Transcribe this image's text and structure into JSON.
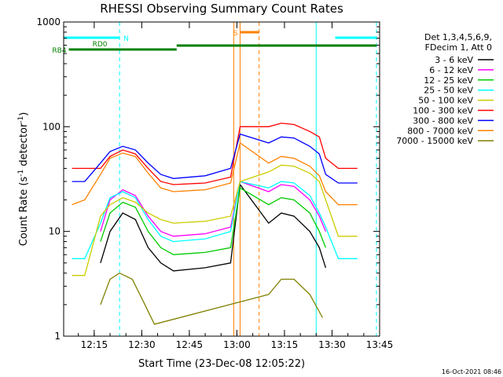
{
  "chart_data": {
    "type": "line",
    "title": "RHESSI Observing Summary Count Rates",
    "xlabel": "Start Time (23-Dec-08 12:05:22)",
    "ylabel": "Count Rate (s⁻¹ detector⁻¹)",
    "ylabel_main": "Count Rate (s",
    "ylabel_exp1": "-1",
    "ylabel_mid": " detector",
    "ylabel_exp2": "-1",
    "ylabel_end": ")",
    "y_scale": "log",
    "ylim": [
      1,
      1000
    ],
    "xlim": [
      "12:05:22",
      "13:45:00"
    ],
    "x_ticks": [
      "12:15",
      "12:30",
      "12:45",
      "13:00",
      "13:15",
      "13:30",
      "13:45"
    ],
    "y_ticks": [
      "1",
      "10",
      "100",
      "1000"
    ],
    "legend_placement": "top-right",
    "legend_header": [
      "Det 1,3,4,5,6,9,",
      "FDecim 1, Att 0"
    ],
    "timestamp": "16-Oct-2021 08:46",
    "series": [
      {
        "name": "3 - 6 keV",
        "color": "#000000",
        "points": [
          [
            "12:17:00",
            5
          ],
          [
            "12:20:00",
            10
          ],
          [
            "12:24:00",
            15
          ],
          [
            "12:28:00",
            13
          ],
          [
            "12:32:00",
            7
          ],
          [
            "12:36:00",
            5
          ],
          [
            "12:40:00",
            4.2
          ],
          [
            "12:50:00",
            4.5
          ],
          [
            "12:58:00",
            5
          ],
          [
            "13:01:00",
            28
          ],
          [
            "13:10:00",
            12
          ],
          [
            "13:14:00",
            15
          ],
          [
            "13:18:00",
            14
          ],
          [
            "13:23:00",
            10
          ],
          [
            "13:26:00",
            7
          ],
          [
            "13:28:00",
            4.5
          ]
        ]
      },
      {
        "name": "6 - 12 keV",
        "color": "#ff00ff",
        "points": [
          [
            "12:17:00",
            10
          ],
          [
            "12:20:00",
            20
          ],
          [
            "12:24:00",
            25
          ],
          [
            "12:28:00",
            22
          ],
          [
            "12:32:00",
            14
          ],
          [
            "12:36:00",
            10
          ],
          [
            "12:40:00",
            9
          ],
          [
            "12:50:00",
            9.5
          ],
          [
            "12:58:00",
            11
          ],
          [
            "13:01:00",
            30
          ],
          [
            "13:10:00",
            24
          ],
          [
            "13:14:00",
            28
          ],
          [
            "13:18:00",
            27
          ],
          [
            "13:23:00",
            20
          ],
          [
            "13:26:00",
            14
          ],
          [
            "13:28:00",
            10
          ]
        ]
      },
      {
        "name": "12 - 25 keV",
        "color": "#00cc00",
        "points": [
          [
            "12:17:00",
            8
          ],
          [
            "12:20:00",
            15
          ],
          [
            "12:24:00",
            19
          ],
          [
            "12:28:00",
            17
          ],
          [
            "12:32:00",
            10
          ],
          [
            "12:36:00",
            7
          ],
          [
            "12:40:00",
            6
          ],
          [
            "12:50:00",
            6.3
          ],
          [
            "12:58:00",
            7
          ],
          [
            "13:01:00",
            26
          ],
          [
            "13:10:00",
            18
          ],
          [
            "13:14:00",
            21
          ],
          [
            "13:18:00",
            20
          ],
          [
            "13:23:00",
            15
          ],
          [
            "13:26:00",
            10
          ],
          [
            "13:28:00",
            7
          ]
        ]
      },
      {
        "name": "25 - 50 keV",
        "color": "#00ffff",
        "points": [
          [
            "12:08:00",
            5.5
          ],
          [
            "12:10:00",
            5.5
          ],
          [
            "12:12:00",
            5.5
          ],
          [
            "12:17:00",
            12
          ],
          [
            "12:20:00",
            21
          ],
          [
            "12:24:00",
            24
          ],
          [
            "12:28:00",
            21
          ],
          [
            "12:32:00",
            13
          ],
          [
            "12:36:00",
            9
          ],
          [
            "12:40:00",
            8
          ],
          [
            "12:50:00",
            8.5
          ],
          [
            "12:58:00",
            10
          ],
          [
            "13:01:00",
            30
          ],
          [
            "13:10:00",
            26
          ],
          [
            "13:14:00",
            30
          ],
          [
            "13:18:00",
            29
          ],
          [
            "13:23:00",
            22
          ],
          [
            "13:26:00",
            15
          ],
          [
            "13:28:00",
            11
          ],
          [
            "13:32:00",
            5.5
          ],
          [
            "13:35:00",
            5.5
          ],
          [
            "13:38:00",
            5.5
          ]
        ]
      },
      {
        "name": "50 - 100 keV",
        "color": "#cccc00",
        "points": [
          [
            "12:08:00",
            3.8
          ],
          [
            "12:10:00",
            3.8
          ],
          [
            "12:12:00",
            3.8
          ],
          [
            "12:17:00",
            14
          ],
          [
            "12:20:00",
            18
          ],
          [
            "12:24:00",
            21
          ],
          [
            "12:28:00",
            19
          ],
          [
            "12:32:00",
            15
          ],
          [
            "12:36:00",
            13
          ],
          [
            "12:40:00",
            12
          ],
          [
            "12:50:00",
            12.5
          ],
          [
            "12:58:00",
            14
          ],
          [
            "13:01:00",
            30
          ],
          [
            "13:10:00",
            37
          ],
          [
            "13:14:00",
            43
          ],
          [
            "13:18:00",
            42
          ],
          [
            "13:23:00",
            36
          ],
          [
            "13:26:00",
            30
          ],
          [
            "13:28:00",
            20
          ],
          [
            "13:32:00",
            9
          ],
          [
            "13:35:00",
            9
          ],
          [
            "13:38:00",
            9
          ]
        ]
      },
      {
        "name": "100 - 300 keV",
        "color": "#ff0000",
        "points": [
          [
            "12:08:00",
            40
          ],
          [
            "12:10:00",
            40
          ],
          [
            "12:12:00",
            40
          ],
          [
            "12:17:00",
            40
          ],
          [
            "12:20:00",
            52
          ],
          [
            "12:24:00",
            60
          ],
          [
            "12:28:00",
            55
          ],
          [
            "12:32:00",
            40
          ],
          [
            "12:36:00",
            30
          ],
          [
            "12:40:00",
            28
          ],
          [
            "12:50:00",
            29
          ],
          [
            "12:58:00",
            33
          ],
          [
            "13:01:00",
            100
          ],
          [
            "13:10:00",
            100
          ],
          [
            "13:14:00",
            108
          ],
          [
            "13:18:00",
            105
          ],
          [
            "13:23:00",
            90
          ],
          [
            "13:26:00",
            80
          ],
          [
            "13:28:00",
            50
          ],
          [
            "13:32:00",
            40
          ],
          [
            "13:35:00",
            40
          ],
          [
            "13:38:00",
            40
          ]
        ]
      },
      {
        "name": "300 - 800 keV",
        "color": "#0000ff",
        "points": [
          [
            "12:08:00",
            30
          ],
          [
            "12:10:00",
            30
          ],
          [
            "12:12:00",
            30
          ],
          [
            "12:17:00",
            45
          ],
          [
            "12:20:00",
            58
          ],
          [
            "12:24:00",
            65
          ],
          [
            "12:28:00",
            60
          ],
          [
            "12:32:00",
            45
          ],
          [
            "12:36:00",
            35
          ],
          [
            "12:40:00",
            32
          ],
          [
            "12:50:00",
            34
          ],
          [
            "12:58:00",
            40
          ],
          [
            "13:01:00",
            85
          ],
          [
            "13:10:00",
            70
          ],
          [
            "13:14:00",
            80
          ],
          [
            "13:18:00",
            78
          ],
          [
            "13:23:00",
            65
          ],
          [
            "13:26:00",
            55
          ],
          [
            "13:28:00",
            35
          ],
          [
            "13:32:00",
            29
          ],
          [
            "13:35:00",
            29
          ],
          [
            "13:38:00",
            29
          ]
        ]
      },
      {
        "name": "800 - 7000 keV",
        "color": "#ff8000",
        "points": [
          [
            "12:08:00",
            18
          ],
          [
            "12:10:00",
            19
          ],
          [
            "12:12:00",
            20
          ],
          [
            "12:17:00",
            35
          ],
          [
            "12:20:00",
            50
          ],
          [
            "12:24:00",
            56
          ],
          [
            "12:28:00",
            52
          ],
          [
            "12:32:00",
            36
          ],
          [
            "12:36:00",
            26
          ],
          [
            "12:40:00",
            24
          ],
          [
            "12:50:00",
            25
          ],
          [
            "12:58:00",
            29
          ],
          [
            "13:01:00",
            70
          ],
          [
            "13:10:00",
            45
          ],
          [
            "13:14:00",
            52
          ],
          [
            "13:18:00",
            50
          ],
          [
            "13:23:00",
            42
          ],
          [
            "13:26:00",
            34
          ],
          [
            "13:28:00",
            24
          ],
          [
            "13:32:00",
            18
          ],
          [
            "13:35:00",
            18
          ],
          [
            "13:38:00",
            18
          ]
        ]
      },
      {
        "name": "7000 - 15000 keV",
        "color": "#808000",
        "points": [
          [
            "12:17:00",
            2
          ],
          [
            "12:20:00",
            3.5
          ],
          [
            "12:23:00",
            4
          ],
          [
            "12:27:00",
            3.5
          ],
          [
            "12:31:00",
            2
          ],
          [
            "12:34:00",
            1.3
          ],
          [
            "13:10:00",
            2.5
          ],
          [
            "13:14:00",
            3.5
          ],
          [
            "13:18:00",
            3.5
          ],
          [
            "13:23:00",
            2.5
          ],
          [
            "13:27:00",
            1.5
          ]
        ]
      }
    ],
    "annotations": {
      "states": [
        {
          "label": "N",
          "color": "#00ffff",
          "segments": [
            [
              "12:05:22",
              "12:23:00"
            ],
            [
              "13:31:00",
              "13:44:00"
            ]
          ]
        },
        {
          "label": "S",
          "color": "#ff8000",
          "segments": [
            [
              "13:01:00",
              "13:07:00"
            ]
          ]
        },
        {
          "label": "RD0",
          "color": "#008000",
          "segments": [
            [
              "12:08:00",
              "12:23:00"
            ]
          ]
        },
        {
          "label": "RB4",
          "color": "#008000",
          "segments": [
            [
              "12:07:00",
              "12:41:00"
            ],
            [
              "12:41:00",
              "13:44:00"
            ]
          ]
        }
      ],
      "vlines": [
        {
          "t": "12:05:22",
          "color": "#00ffff",
          "style": "solid"
        },
        {
          "t": "12:23:00",
          "color": "#00ffff",
          "style": "dashed"
        },
        {
          "t": "12:59:00",
          "color": "#ff8000",
          "style": "solid"
        },
        {
          "t": "13:01:00",
          "color": "#ff8000",
          "style": "solid"
        },
        {
          "t": "13:07:00",
          "color": "#ff8000",
          "style": "dashed"
        },
        {
          "t": "13:25:00",
          "color": "#00ffff",
          "style": "solid"
        },
        {
          "t": "13:44:00",
          "color": "#00ffff",
          "style": "dashed"
        }
      ]
    }
  }
}
